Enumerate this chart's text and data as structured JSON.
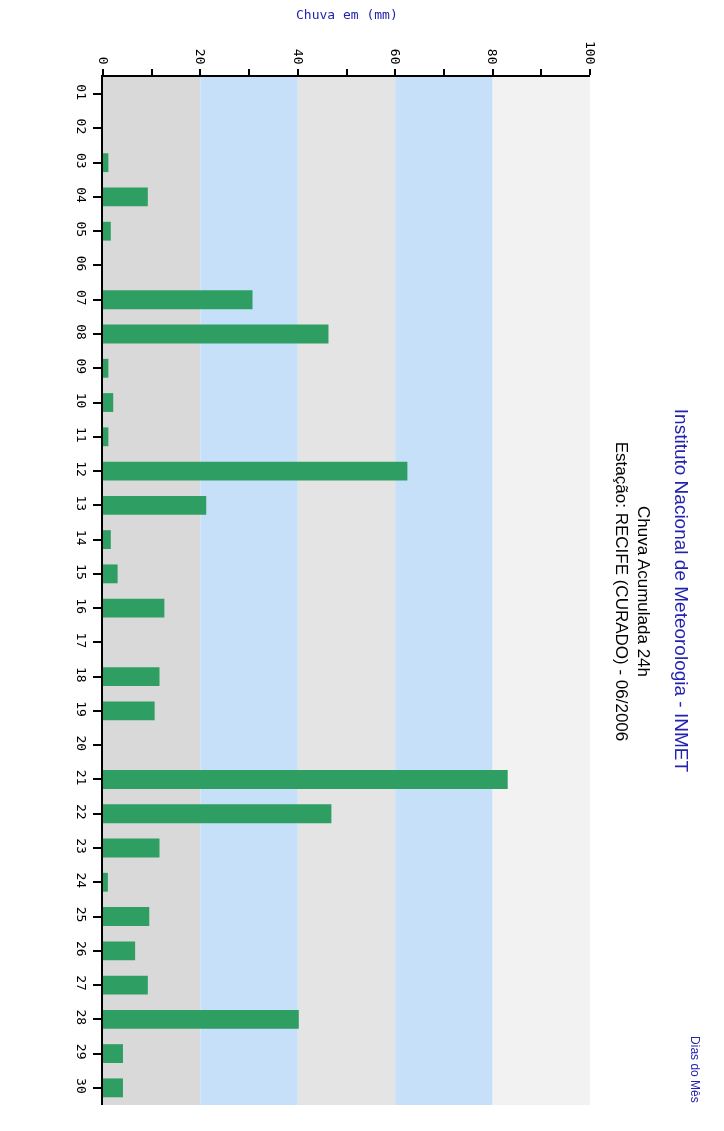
{
  "chart_data": {
    "type": "bar",
    "orientation": "horizontal",
    "title": "Instituto Nacional de Meteorologia - INMET",
    "subtitle": "Chuva Acumulada 24h\nEstação: RECIFE (CURADO) - 06/2006",
    "xlabel": "Chuva em (mm)",
    "annotations": [
      "Dias do Mês"
    ],
    "categories": [
      "01",
      "02",
      "03",
      "04",
      "05",
      "06",
      "07",
      "08",
      "09",
      "10",
      "11",
      "12",
      "13",
      "14",
      "15",
      "16",
      "17",
      "18",
      "19",
      "20",
      "21",
      "22",
      "23",
      "24",
      "25",
      "26",
      "27",
      "28",
      "29",
      "30"
    ],
    "values": [
      0,
      0,
      1.1,
      9.2,
      1.6,
      0,
      30.7,
      46.3,
      1.1,
      2.1,
      1.1,
      62.5,
      21.2,
      1.6,
      3.0,
      12.6,
      0,
      11.6,
      10.6,
      0,
      83.1,
      46.9,
      11.6,
      1.0,
      9.5,
      6.6,
      9.2,
      40.2,
      4.1,
      4.1
    ],
    "color": "#2e9e62",
    "xlim": [
      0,
      100
    ],
    "xticks": [
      0,
      {
        "value": 10,
        "label": null
      },
      20,
      {
        "value": 30,
        "label": null
      },
      40,
      {
        "value": 50,
        "label": null
      },
      60,
      {
        "value": 70,
        "label": null
      },
      80,
      {
        "value": 90,
        "label": null
      },
      100
    ],
    "bands": [
      {
        "axis": "x",
        "from": 0,
        "to": 20,
        "color": "#d9d9d9"
      },
      {
        "axis": "x",
        "from": 20,
        "to": 40,
        "color": "#c6e0fa"
      },
      {
        "axis": "x",
        "from": 40,
        "to": 60,
        "color": "#e4e4e4"
      },
      {
        "axis": "x",
        "from": 60,
        "to": 80,
        "color": "#c6e0fa"
      },
      {
        "axis": "x",
        "from": 80,
        "to": 100,
        "color": "#f2f2f2"
      }
    ],
    "grid": false,
    "legend": false
  }
}
